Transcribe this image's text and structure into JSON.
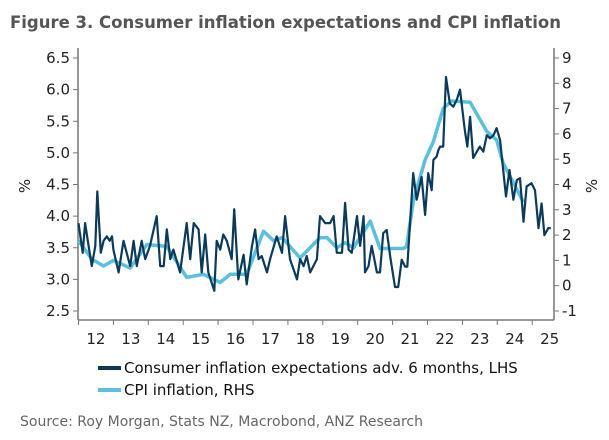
{
  "chart_data": {
    "type": "line",
    "title": "Figure 3.  Consumer inflation expectations and CPI inflation",
    "ylabel_left": "%",
    "ylabel_right": "%",
    "ylim_left": [
      2.5,
      6.5
    ],
    "ylim_right": [
      -1,
      9
    ],
    "yticks_left": [
      "2.5",
      "3.0",
      "3.5",
      "4.0",
      "4.5",
      "5.0",
      "5.5",
      "6.0",
      "6.5"
    ],
    "yticks_right": [
      "-1",
      "0",
      "1",
      "2",
      "3",
      "4",
      "5",
      "6",
      "7",
      "8",
      "9"
    ],
    "xticks": [
      "12",
      "13",
      "14",
      "15",
      "16",
      "17",
      "18",
      "19",
      "20",
      "21",
      "22",
      "23",
      "24",
      "25"
    ],
    "grid": false,
    "legend_placement": "bottom",
    "source": "Source: Roy Morgan, Stats NZ, Macrobond, ANZ Research",
    "series": [
      {
        "name": "Consumer inflation expectations adv. 6 months, LHS",
        "axis": "left",
        "color": "#0b3a5a",
        "points": [
          [
            2012.0,
            3.89
          ],
          [
            2012.12,
            3.42
          ],
          [
            2012.19,
            3.89
          ],
          [
            2012.29,
            3.53
          ],
          [
            2012.38,
            3.21
          ],
          [
            2012.48,
            3.53
          ],
          [
            2012.54,
            4.39
          ],
          [
            2012.64,
            3.42
          ],
          [
            2012.72,
            3.61
          ],
          [
            2012.81,
            3.68
          ],
          [
            2012.89,
            3.61
          ],
          [
            2012.96,
            3.68
          ],
          [
            2013.0,
            3.47
          ],
          [
            2013.15,
            3.11
          ],
          [
            2013.29,
            3.61
          ],
          [
            2013.48,
            3.21
          ],
          [
            2013.58,
            3.61
          ],
          [
            2013.67,
            3.21
          ],
          [
            2013.81,
            3.61
          ],
          [
            2013.91,
            3.32
          ],
          [
            2014.05,
            3.53
          ],
          [
            2014.24,
            4.0
          ],
          [
            2014.34,
            3.21
          ],
          [
            2014.44,
            3.21
          ],
          [
            2014.53,
            3.79
          ],
          [
            2014.63,
            3.32
          ],
          [
            2014.72,
            3.47
          ],
          [
            2014.91,
            3.11
          ],
          [
            2015.1,
            3.89
          ],
          [
            2015.2,
            3.32
          ],
          [
            2015.3,
            3.89
          ],
          [
            2015.44,
            3.79
          ],
          [
            2015.53,
            3.11
          ],
          [
            2015.63,
            3.71
          ],
          [
            2015.72,
            3.11
          ],
          [
            2015.89,
            2.82
          ],
          [
            2015.96,
            3.61
          ],
          [
            2016.06,
            3.47
          ],
          [
            2016.15,
            3.71
          ],
          [
            2016.25,
            3.61
          ],
          [
            2016.39,
            3.32
          ],
          [
            2016.46,
            4.11
          ],
          [
            2016.58,
            3.0
          ],
          [
            2016.73,
            3.39
          ],
          [
            2016.82,
            2.92
          ],
          [
            2016.97,
            3.53
          ],
          [
            2017.06,
            3.79
          ],
          [
            2017.16,
            3.32
          ],
          [
            2017.25,
            3.37
          ],
          [
            2017.4,
            3.11
          ],
          [
            2017.49,
            3.32
          ],
          [
            2017.68,
            3.68
          ],
          [
            2017.83,
            3.42
          ],
          [
            2017.92,
            4.0
          ],
          [
            2018.06,
            3.32
          ],
          [
            2018.26,
            3.0
          ],
          [
            2018.35,
            3.32
          ],
          [
            2018.45,
            3.21
          ],
          [
            2018.54,
            3.37
          ],
          [
            2018.64,
            3.11
          ],
          [
            2018.83,
            3.32
          ],
          [
            2018.92,
            4.0
          ],
          [
            2019.07,
            3.89
          ],
          [
            2019.21,
            3.89
          ],
          [
            2019.31,
            4.0
          ],
          [
            2019.4,
            3.42
          ],
          [
            2019.55,
            3.42
          ],
          [
            2019.64,
            4.21
          ],
          [
            2019.74,
            3.47
          ],
          [
            2019.83,
            3.42
          ],
          [
            2019.98,
            4.0
          ],
          [
            2020.07,
            3.53
          ],
          [
            2020.17,
            4.0
          ],
          [
            2020.21,
            3.11
          ],
          [
            2020.31,
            3.21
          ],
          [
            2020.4,
            3.53
          ],
          [
            2020.55,
            3.11
          ],
          [
            2020.64,
            3.11
          ],
          [
            2020.73,
            3.73
          ],
          [
            2020.83,
            3.78
          ],
          [
            2020.93,
            3.36
          ],
          [
            2021.07,
            2.88
          ],
          [
            2021.16,
            2.88
          ],
          [
            2021.26,
            3.31
          ],
          [
            2021.36,
            3.2
          ],
          [
            2021.42,
            3.2
          ],
          [
            2021.59,
            4.68
          ],
          [
            2021.69,
            4.26
          ],
          [
            2021.83,
            4.62
          ],
          [
            2021.93,
            4.02
          ],
          [
            2022.02,
            4.68
          ],
          [
            2022.12,
            4.41
          ],
          [
            2022.17,
            4.89
          ],
          [
            2022.26,
            4.94
          ],
          [
            2022.31,
            5.04
          ],
          [
            2022.36,
            5.1
          ],
          [
            2022.45,
            5.1
          ],
          [
            2022.53,
            6.2
          ],
          [
            2022.64,
            5.78
          ],
          [
            2022.74,
            5.73
          ],
          [
            2022.84,
            5.84
          ],
          [
            2022.93,
            6.0
          ],
          [
            2023.07,
            5.36
          ],
          [
            2023.14,
            5.1
          ],
          [
            2023.22,
            5.57
          ],
          [
            2023.31,
            4.92
          ],
          [
            2023.5,
            5.1
          ],
          [
            2023.6,
            5.02
          ],
          [
            2023.7,
            5.28
          ],
          [
            2023.79,
            5.23
          ],
          [
            2023.89,
            5.28
          ],
          [
            2023.98,
            5.39
          ],
          [
            2024.08,
            5.2
          ],
          [
            2024.17,
            4.73
          ],
          [
            2024.25,
            4.31
          ],
          [
            2024.35,
            4.73
          ],
          [
            2024.46,
            4.26
          ],
          [
            2024.56,
            4.57
          ],
          [
            2024.65,
            4.6
          ],
          [
            2024.75,
            3.91
          ],
          [
            2024.84,
            4.47
          ],
          [
            2024.98,
            4.52
          ],
          [
            2025.08,
            4.41
          ],
          [
            2025.18,
            3.81
          ],
          [
            2025.27,
            4.2
          ],
          [
            2025.35,
            3.7
          ],
          [
            2025.46,
            3.81
          ],
          [
            2025.53,
            3.81
          ]
        ]
      },
      {
        "name": "CPI inflation, RHS",
        "axis": "right",
        "color": "#5bbfde",
        "points": [
          [
            2012.0,
            1.78
          ],
          [
            2012.38,
            1.05
          ],
          [
            2012.72,
            0.78
          ],
          [
            2013.0,
            1.0
          ],
          [
            2013.48,
            0.7
          ],
          [
            2013.96,
            1.63
          ],
          [
            2014.53,
            1.55
          ],
          [
            2015.1,
            0.33
          ],
          [
            2015.58,
            0.45
          ],
          [
            2016.06,
            0.13
          ],
          [
            2016.35,
            0.45
          ],
          [
            2016.82,
            0.45
          ],
          [
            2017.3,
            2.15
          ],
          [
            2017.59,
            1.78
          ],
          [
            2017.83,
            1.9
          ],
          [
            2018.35,
            1.1
          ],
          [
            2018.92,
            1.9
          ],
          [
            2019.12,
            1.9
          ],
          [
            2019.4,
            1.5
          ],
          [
            2019.64,
            1.7
          ],
          [
            2019.88,
            1.5
          ],
          [
            2020.36,
            2.55
          ],
          [
            2020.64,
            1.47
          ],
          [
            2021.31,
            1.47
          ],
          [
            2021.4,
            1.55
          ],
          [
            2021.6,
            3.4
          ],
          [
            2021.93,
            4.97
          ],
          [
            2022.17,
            5.7
          ],
          [
            2022.45,
            7.0
          ],
          [
            2022.69,
            7.3
          ],
          [
            2023.22,
            7.25
          ],
          [
            2023.7,
            6.1
          ],
          [
            2023.98,
            5.76
          ],
          [
            2024.17,
            4.84
          ],
          [
            2024.75,
            3.3
          ]
        ]
      }
    ]
  }
}
